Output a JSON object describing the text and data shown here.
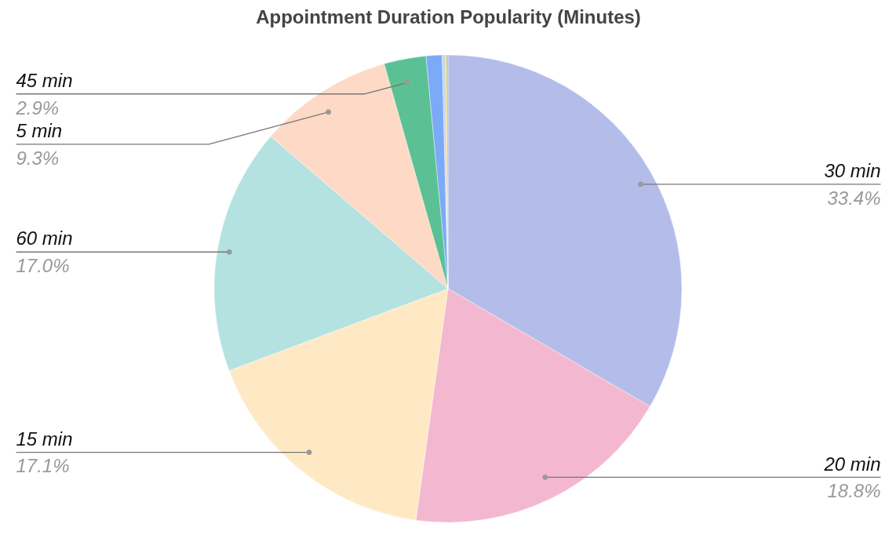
{
  "chart_data": {
    "type": "pie",
    "title": "Appointment Duration Popularity (Minutes)",
    "categories": [
      "30 min",
      "20 min",
      "15 min",
      "60 min",
      "5 min",
      "45 min",
      null,
      null,
      null,
      null
    ],
    "values": [
      33.4,
      18.8,
      17.1,
      17.0,
      9.3,
      2.9,
      1.1,
      0.2,
      0.1,
      0.1
    ],
    "value_labels": [
      "33.4%",
      "18.8%",
      "17.1%",
      "17.0%",
      "9.3%",
      "2.9%",
      null,
      null,
      null,
      null
    ],
    "colors": [
      "#b4bde9",
      "#f3b8cf",
      "#ffe9c5",
      "#b3e2e1",
      "#fedac6",
      "#5bc195",
      "#7baaf7",
      "#c7d3ee",
      "#f7cb4d",
      "#8fd0a4"
    ]
  }
}
